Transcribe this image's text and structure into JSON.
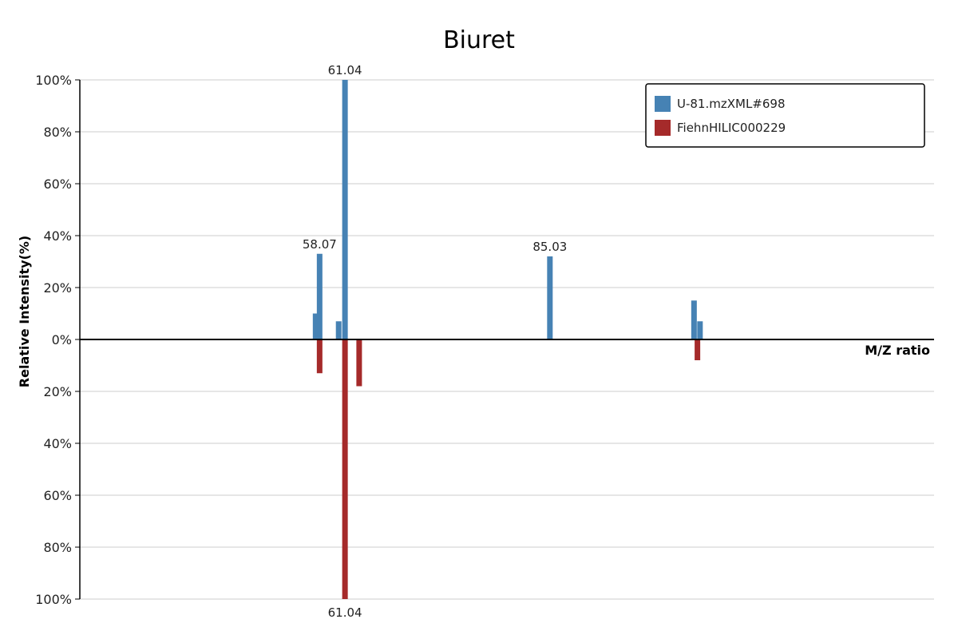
{
  "chart_data": {
    "type": "bar",
    "title": "Biuret",
    "xlabel": "M/Z ratio",
    "ylabel": "Relative Intensity(%)",
    "ylim_top": [
      0,
      100
    ],
    "ylim_bottom": [
      0,
      100
    ],
    "xlim": [
      30,
      130
    ],
    "y_ticks_top": [
      "100%",
      "80%",
      "60%",
      "40%",
      "20%",
      "0%"
    ],
    "y_ticks_bottom": [
      "20%",
      "40%",
      "60%",
      "80%",
      "100%"
    ],
    "grid": true,
    "legend_position": "top-right",
    "colors": {
      "top": "#4682b4",
      "bottom": "#a52a2a",
      "grid": "#dddddd",
      "axis": "#000000"
    },
    "series": [
      {
        "name": "U-81.mzXML#698",
        "direction": "up",
        "peaks": [
          {
            "mz": 57.6,
            "intensity": 10
          },
          {
            "mz": 58.07,
            "intensity": 33,
            "label": "58.07"
          },
          {
            "mz": 60.3,
            "intensity": 7
          },
          {
            "mz": 61.04,
            "intensity": 100,
            "label": "61.04"
          },
          {
            "mz": 85.03,
            "intensity": 32,
            "label": "85.03"
          },
          {
            "mz": 101.9,
            "intensity": 15
          },
          {
            "mz": 102.6,
            "intensity": 7
          }
        ]
      },
      {
        "name": "FiehnHILIC000229",
        "direction": "down",
        "peaks": [
          {
            "mz": 58.07,
            "intensity": 13
          },
          {
            "mz": 61.04,
            "intensity": 100,
            "label": "61.04"
          },
          {
            "mz": 62.7,
            "intensity": 18
          },
          {
            "mz": 102.3,
            "intensity": 8
          }
        ]
      }
    ]
  }
}
